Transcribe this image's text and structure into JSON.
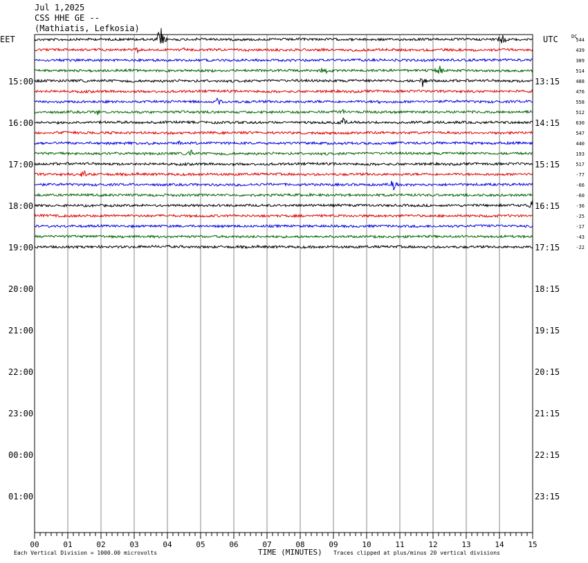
{
  "header": {
    "date": "Jul 1,2025",
    "station": "CSS HHE GE --",
    "location": "(Mathiatis, Lefkosia)"
  },
  "left_tz": "EET",
  "right_tz": "UTC",
  "dc_label": "DC",
  "footer": {
    "scale_note": "Each Vertical Division = 1000.00 microvolts",
    "xlabel": "TIME (MINUTES)",
    "clip_note": "Traces clipped at plus/minus 20 vertical divisions"
  },
  "chart_data": {
    "type": "line",
    "title": "CSS HHE GE --",
    "xlabel": "TIME (MINUTES)",
    "xlim": [
      0,
      15
    ],
    "x_ticks": [
      "00",
      "01",
      "02",
      "03",
      "04",
      "05",
      "06",
      "07",
      "08",
      "09",
      "10",
      "11",
      "12",
      "13",
      "14",
      "15"
    ],
    "left_hour_labels": [
      "15:00",
      "16:00",
      "17:00",
      "18:00",
      "19:00",
      "20:00",
      "21:00",
      "22:00",
      "23:00",
      "00:00",
      "01:00"
    ],
    "right_hour_labels": [
      "13:15",
      "14:15",
      "15:15",
      "16:15",
      "17:15",
      "18:15",
      "19:15",
      "20:15",
      "21:15",
      "22:15",
      "23:15"
    ],
    "trace_colors": [
      "#000000",
      "#e00000",
      "#0000e0",
      "#006600"
    ],
    "dc_offsets": [
      "544",
      "439",
      "389",
      "514",
      "488",
      "476",
      "558",
      "512",
      "630",
      "547",
      "440",
      "193",
      "517",
      "-77",
      "-66",
      "-60",
      "-36",
      "-25",
      "-17",
      "-43",
      "-22"
    ],
    "grid": "vertical lines each minute"
  }
}
